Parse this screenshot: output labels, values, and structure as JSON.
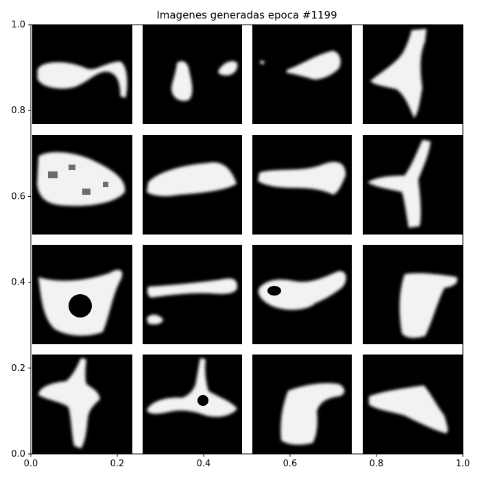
{
  "chart_data": {
    "type": "image-grid",
    "title": "Imagenes generadas epoca #1199",
    "xlabel": "",
    "ylabel": "",
    "xlim": [
      0.0,
      1.0
    ],
    "ylim": [
      0.0,
      1.0
    ],
    "x_ticks": [
      0.0,
      0.2,
      0.4,
      0.6,
      0.8,
      1.0
    ],
    "y_ticks": [
      0.0,
      0.2,
      0.4,
      0.6,
      0.8,
      1.0
    ],
    "x_tick_labels": [
      "0.0",
      "0.2",
      "0.4",
      "0.6",
      "0.8",
      "1.0"
    ],
    "y_tick_labels": [
      "0.0",
      "0.2",
      "0.4",
      "0.6",
      "0.8",
      "1.0"
    ],
    "grid": false,
    "legend": "none",
    "tile_rows": 4,
    "tile_cols": 4,
    "tile_background": "#000000",
    "tile_foreground": "#f2f2f2",
    "panel_background": "#ffffff"
  }
}
